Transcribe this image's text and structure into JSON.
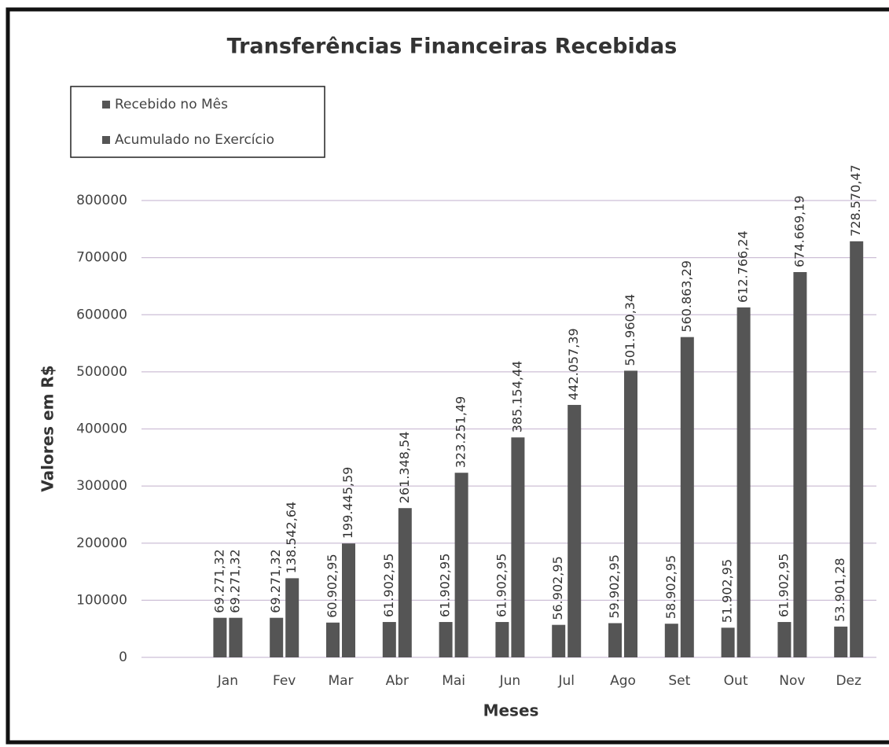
{
  "chart_data": {
    "type": "bar",
    "title": "Transferências Financeiras Recebidas",
    "x_label": "Meses",
    "y_label": "Valores em R$",
    "categories": [
      "Jan",
      "Fev",
      "Mar",
      "Abr",
      "Mai",
      "Jun",
      "Jul",
      "Ago",
      "Set",
      "Out",
      "Nov",
      "Dez"
    ],
    "series": [
      {
        "name": "Recebido no Mês",
        "color": "#555555",
        "values": [
          69271.32,
          69271.32,
          60902.95,
          61902.95,
          61902.95,
          61902.95,
          56902.95,
          59902.95,
          58902.95,
          51902.95,
          61902.95,
          53901.28
        ],
        "value_labels": [
          "69.271,32",
          "69.271,32",
          "60.902,95",
          "61.902,95",
          "61.902,95",
          "61.902,95",
          "56.902,95",
          "59.902,95",
          "58.902,95",
          "51.902,95",
          "61.902,95",
          "53.901,28"
        ]
      },
      {
        "name": "Acumulado no Exercício",
        "color": "#555555",
        "values": [
          69271.32,
          138542.64,
          199445.59,
          261348.54,
          323251.49,
          385154.44,
          442057.39,
          501960.34,
          560863.29,
          612766.24,
          674669.19,
          728570.47
        ],
        "value_labels": [
          "69.271,32",
          "138.542,64",
          "199.445,59",
          "261.348,54",
          "323.251,49",
          "385.154,44",
          "442.057,39",
          "501.960,34",
          "560.863,29",
          "612.766,24",
          "674.669,19",
          "728.570,47"
        ]
      }
    ],
    "ylim": [
      0,
      800000
    ],
    "yticks": [
      0,
      100000,
      200000,
      300000,
      400000,
      500000,
      600000,
      700000,
      800000
    ],
    "grid": true,
    "legend": "top-left"
  }
}
